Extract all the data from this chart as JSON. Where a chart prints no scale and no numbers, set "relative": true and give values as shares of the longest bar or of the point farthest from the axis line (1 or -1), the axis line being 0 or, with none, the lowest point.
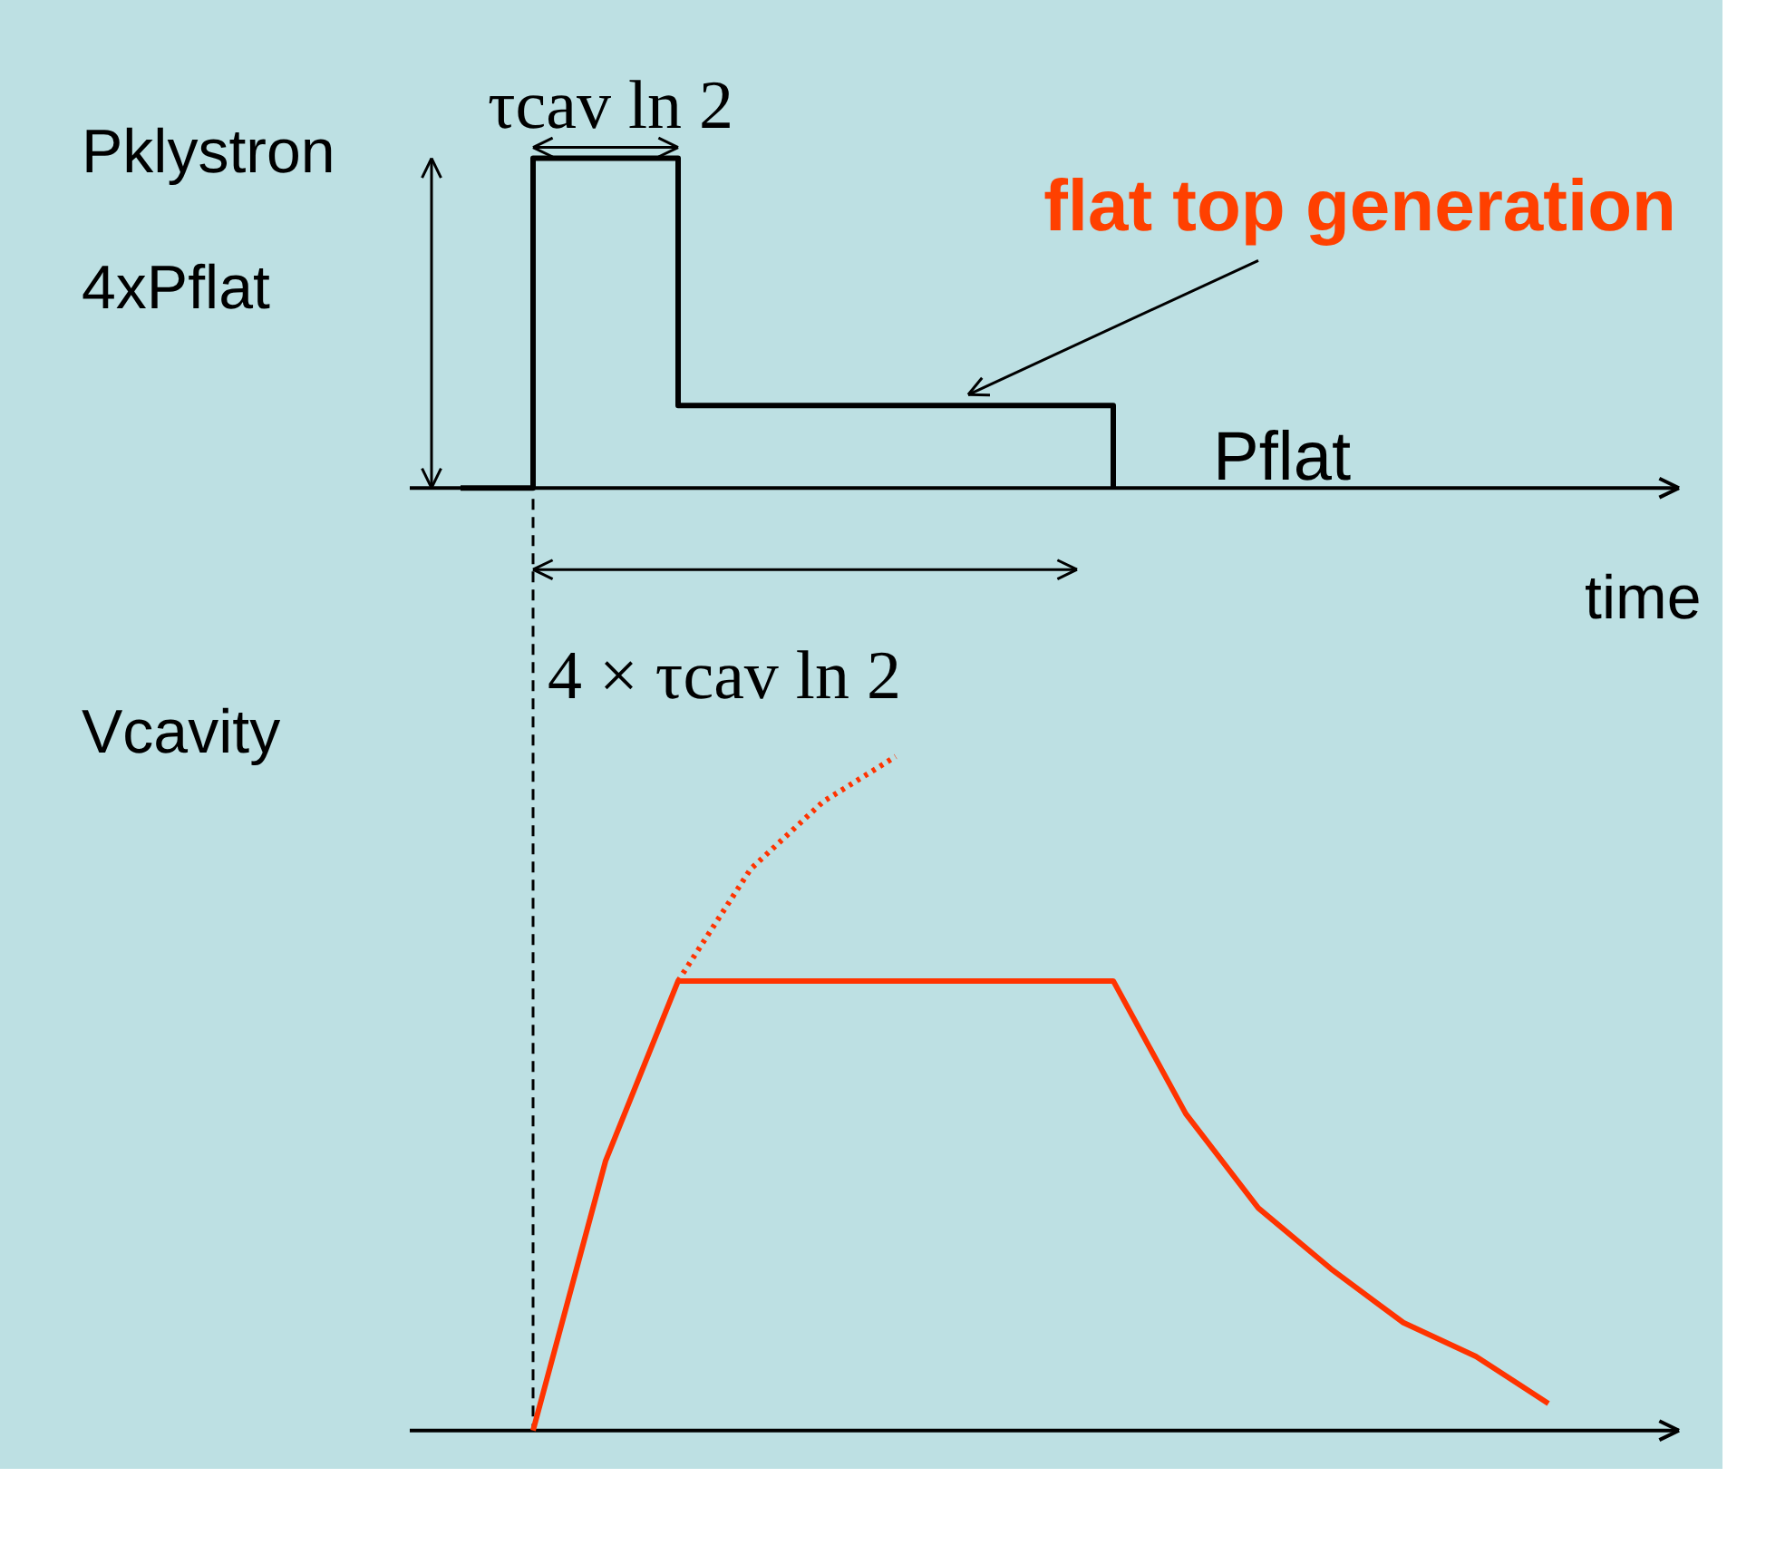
{
  "chart_data": [
    {
      "type": "step",
      "ylabel": "Pklystron",
      "xlabel": "time",
      "relative": true,
      "categories": [
        null,
        null,
        null,
        null,
        null,
        null,
        null,
        null,
        null,
        null,
        null,
        null,
        null,
        null,
        null,
        null,
        null,
        null
      ],
      "series": [
        {
          "color": "#000000",
          "values": [
            null,
            0,
            1,
            1,
            0.25,
            0.25,
            0.25,
            0.25,
            0.25,
            0.25,
            0,
            null,
            null,
            null,
            null,
            null,
            null,
            null
          ]
        }
      ],
      "annotations": [
        "flat top generation",
        "τcav ln 2",
        "4xPflat",
        "4 × τcav ln 2",
        "Pflat"
      ]
    },
    {
      "type": "line",
      "ylabel": "Vcavity",
      "relative": true,
      "categories": [
        null,
        null,
        null,
        null,
        null,
        null,
        null,
        null,
        null,
        null,
        null,
        null,
        null,
        null,
        null,
        null,
        null,
        null
      ],
      "series": [
        {
          "color": "#ff3300",
          "line_style": "solid",
          "values": [
            null,
            null,
            0,
            0.4,
            0.667,
            0.667,
            0.667,
            0.667,
            0.667,
            0.667,
            0.667,
            0.47,
            0.33,
            0.24,
            0.16,
            0.11,
            0.04,
            null
          ]
        },
        {
          "color": "#ff3300",
          "line_style": "dotted",
          "values": [
            null,
            null,
            null,
            null,
            0.667,
            0.833,
            0.933,
            1,
            null,
            null,
            null,
            null,
            null,
            null,
            null,
            null,
            null,
            null
          ]
        }
      ],
      "ref_lines": [
        {
          "axis": "x",
          "line_style": "dashed",
          "color": "#000000"
        }
      ]
    }
  ]
}
